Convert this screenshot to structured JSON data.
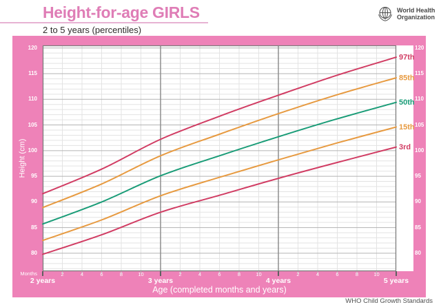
{
  "header": {
    "title": "Height-for-age GIRLS",
    "subtitle": "2 to 5 years (percentiles)",
    "logo_line1": "World Health",
    "logo_line2": "Organization"
  },
  "footer": {
    "text": "WHO Child Growth Standards"
  },
  "colors": {
    "page_pink": "#ee82b8",
    "title_pink": "#df7db6",
    "rule_pink": "#e7b2d3",
    "percentile_outer": "#d13c63",
    "percentile_mid": "#e79a40",
    "percentile_median": "#199c77",
    "grid_minor": "#e3e3e3",
    "grid_major": "#b3b3b3",
    "grid_year": "#8e8e8e",
    "panel_border": "#7d7d7d",
    "tick_gray": "#b9b9b9",
    "axis_text": "#ffffff",
    "footer_text": "#4f4f4f"
  },
  "chart_data": {
    "type": "line",
    "title": "Height-for-age GIRLS",
    "subtitle": "2 to 5 years (percentiles)",
    "xlabel": "Age (completed months and years)",
    "ylabel": "Height (cm)",
    "x_unit_label": "Months",
    "x_months": [
      24,
      30,
      36,
      42,
      48,
      54,
      60
    ],
    "xlim_months": [
      24,
      60
    ],
    "ylim": [
      76.5,
      120.5
    ],
    "y_major_ticks": [
      80,
      85,
      90,
      95,
      100,
      105,
      110,
      115,
      120
    ],
    "y_minor_step": 1,
    "x_minor_step_months": 2,
    "grid": true,
    "legend_position": "right-inline-labels",
    "month_labels": [
      "2",
      "4",
      "6",
      "8",
      "10"
    ],
    "year_labels": [
      {
        "month": 24,
        "label": "2 years"
      },
      {
        "month": 36,
        "label": "3 years"
      },
      {
        "month": 48,
        "label": "4 years"
      },
      {
        "month": 60,
        "label": "5 years"
      }
    ],
    "series": [
      {
        "name": "97th",
        "color": "#d13c63",
        "values": [
          91.6,
          96.4,
          102.2,
          106.7,
          110.8,
          114.7,
          118.2
        ]
      },
      {
        "name": "85th",
        "color": "#e79a40",
        "values": [
          88.9,
          93.5,
          99.0,
          103.2,
          107.2,
          110.9,
          114.2
        ]
      },
      {
        "name": "50th",
        "color": "#199c77",
        "values": [
          85.7,
          90.0,
          95.1,
          99.0,
          102.7,
          106.2,
          109.4
        ]
      },
      {
        "name": "15th",
        "color": "#e79a40",
        "values": [
          82.5,
          86.5,
          91.2,
          94.8,
          98.2,
          101.5,
          104.6
        ]
      },
      {
        "name": "3rd",
        "color": "#d13c63",
        "values": [
          79.8,
          83.6,
          88.0,
          91.3,
          94.6,
          97.7,
          100.7
        ]
      }
    ]
  }
}
